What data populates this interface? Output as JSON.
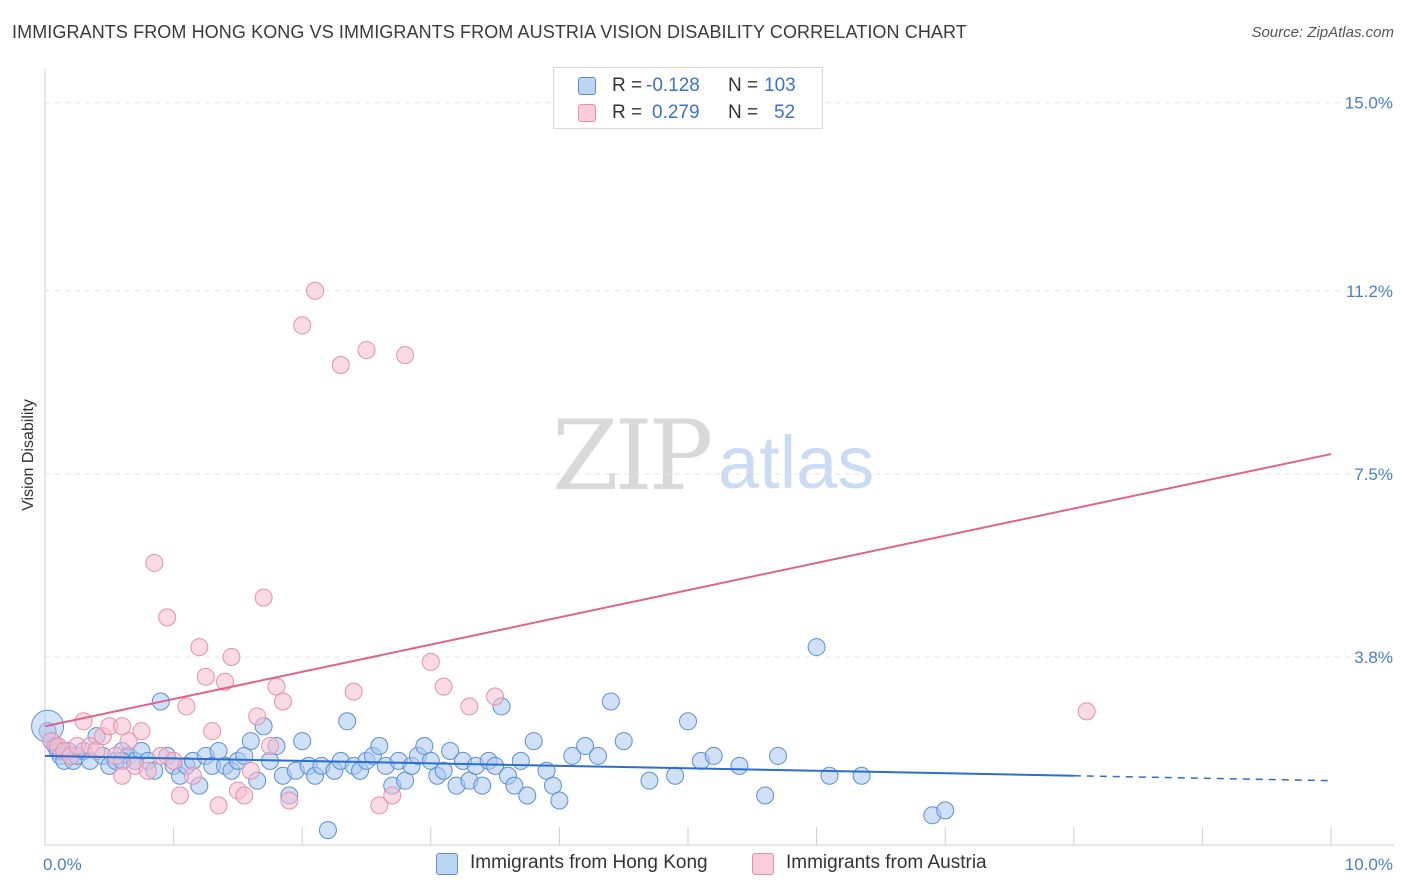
{
  "title": "IMMIGRANTS FROM HONG KONG VS IMMIGRANTS FROM AUSTRIA VISION DISABILITY CORRELATION CHART",
  "source": "Source: ZipAtlas.com",
  "watermark": {
    "zip": "ZIP",
    "atlas": "atlas"
  },
  "legend": {
    "r_label": "R =",
    "n_label": "N =",
    "hong_kong": {
      "r": "-0.128",
      "n": "103"
    },
    "austria": {
      "r": "0.279",
      "n": "52"
    }
  },
  "bottom_legend": {
    "hong_kong": "Immigrants from Hong Kong",
    "austria": "Immigrants from Austria"
  },
  "colors": {
    "hong_kong_fill": "#a9c8f0",
    "hong_kong_stroke": "#5b8fd6",
    "hong_kong_line": "#2a6fcf",
    "austria_fill": "#f6bdd0",
    "austria_stroke": "#e58fac",
    "austria_line": "#e0628e",
    "tick_text": "#4a7fd0",
    "grid": "#e3e3e3"
  },
  "chart_data": {
    "type": "scatter",
    "title": "IMMIGRANTS FROM HONG KONG VS IMMIGRANTS FROM AUSTRIA VISION DISABILITY CORRELATION CHART",
    "xlabel": "",
    "ylabel": "Vision Disability",
    "xlim": [
      0,
      10
    ],
    "ylim": [
      0,
      15.5
    ],
    "x_tick_labels": [
      "0.0%",
      "10.0%"
    ],
    "y_ticks": [
      3.8,
      7.5,
      11.2,
      15.0
    ],
    "y_tick_labels": [
      "3.8%",
      "7.5%",
      "11.2%",
      "15.0%"
    ],
    "grid": true,
    "legend_position": "top-center",
    "series": [
      {
        "name": "Immigrants from Hong Kong",
        "color": "#5b8fd6",
        "trend": {
          "x": [
            0,
            8.0
          ],
          "y": [
            1.8,
            1.4
          ],
          "dashed_to": [
            10.0,
            1.3
          ]
        },
        "points": [
          [
            0.02,
            2.3
          ],
          [
            0.05,
            2.1
          ],
          [
            0.08,
            2.0
          ],
          [
            0.1,
            1.9
          ],
          [
            0.12,
            1.8
          ],
          [
            0.15,
            1.7
          ],
          [
            0.18,
            1.9
          ],
          [
            0.2,
            1.8
          ],
          [
            0.22,
            1.7
          ],
          [
            0.25,
            1.8
          ],
          [
            0.3,
            1.9
          ],
          [
            0.35,
            1.7
          ],
          [
            0.4,
            2.2
          ],
          [
            0.45,
            1.8
          ],
          [
            0.5,
            1.6
          ],
          [
            0.55,
            1.7
          ],
          [
            0.6,
            1.9
          ],
          [
            0.65,
            1.8
          ],
          [
            0.7,
            1.7
          ],
          [
            0.75,
            1.9
          ],
          [
            0.8,
            1.7
          ],
          [
            0.85,
            1.5
          ],
          [
            0.9,
            2.9
          ],
          [
            0.95,
            1.8
          ],
          [
            1.0,
            1.6
          ],
          [
            1.05,
            1.4
          ],
          [
            1.1,
            1.6
          ],
          [
            1.15,
            1.7
          ],
          [
            1.2,
            1.2
          ],
          [
            1.25,
            1.8
          ],
          [
            1.3,
            1.6
          ],
          [
            1.35,
            1.9
          ],
          [
            1.4,
            1.6
          ],
          [
            1.45,
            1.5
          ],
          [
            1.5,
            1.7
          ],
          [
            1.55,
            1.8
          ],
          [
            1.6,
            2.1
          ],
          [
            1.65,
            1.3
          ],
          [
            1.7,
            2.4
          ],
          [
            1.75,
            1.7
          ],
          [
            1.8,
            2.0
          ],
          [
            1.85,
            1.4
          ],
          [
            1.9,
            1.0
          ],
          [
            1.95,
            1.5
          ],
          [
            2.0,
            2.1
          ],
          [
            2.05,
            1.6
          ],
          [
            2.1,
            1.4
          ],
          [
            2.15,
            1.6
          ],
          [
            2.2,
            0.3
          ],
          [
            2.25,
            1.5
          ],
          [
            2.3,
            1.7
          ],
          [
            2.35,
            2.5
          ],
          [
            2.4,
            1.6
          ],
          [
            2.45,
            1.5
          ],
          [
            2.5,
            1.7
          ],
          [
            2.55,
            1.8
          ],
          [
            2.6,
            2.0
          ],
          [
            2.65,
            1.6
          ],
          [
            2.7,
            1.2
          ],
          [
            2.75,
            1.7
          ],
          [
            2.8,
            1.3
          ],
          [
            2.85,
            1.6
          ],
          [
            2.9,
            1.8
          ],
          [
            2.95,
            2.0
          ],
          [
            3.0,
            1.7
          ],
          [
            3.05,
            1.4
          ],
          [
            3.1,
            1.5
          ],
          [
            3.15,
            1.9
          ],
          [
            3.2,
            1.2
          ],
          [
            3.25,
            1.7
          ],
          [
            3.3,
            1.3
          ],
          [
            3.35,
            1.6
          ],
          [
            3.4,
            1.2
          ],
          [
            3.45,
            1.7
          ],
          [
            3.5,
            1.6
          ],
          [
            3.55,
            2.8
          ],
          [
            3.6,
            1.4
          ],
          [
            3.65,
            1.2
          ],
          [
            3.7,
            1.7
          ],
          [
            3.75,
            1.0
          ],
          [
            3.8,
            2.1
          ],
          [
            3.9,
            1.5
          ],
          [
            3.95,
            1.2
          ],
          [
            4.0,
            0.9
          ],
          [
            4.1,
            1.8
          ],
          [
            4.2,
            2.0
          ],
          [
            4.3,
            1.8
          ],
          [
            4.4,
            2.9
          ],
          [
            4.5,
            2.1
          ],
          [
            4.7,
            1.3
          ],
          [
            4.9,
            1.4
          ],
          [
            5.0,
            2.5
          ],
          [
            5.1,
            1.7
          ],
          [
            5.2,
            1.8
          ],
          [
            5.4,
            1.6
          ],
          [
            5.6,
            1.0
          ],
          [
            5.7,
            1.8
          ],
          [
            6.0,
            4.0
          ],
          [
            6.1,
            1.4
          ],
          [
            6.35,
            1.4
          ],
          [
            6.9,
            0.6
          ],
          [
            7.0,
            0.7
          ],
          [
            0.6,
            1.7
          ]
        ]
      },
      {
        "name": "Immigrants from Austria",
        "color": "#e58fac",
        "trend": {
          "x": [
            0,
            10.0
          ],
          "y": [
            2.4,
            7.9
          ]
        },
        "points": [
          [
            0.05,
            2.1
          ],
          [
            0.1,
            2.0
          ],
          [
            0.15,
            1.9
          ],
          [
            0.2,
            1.8
          ],
          [
            0.25,
            2.0
          ],
          [
            0.3,
            2.5
          ],
          [
            0.35,
            2.0
          ],
          [
            0.4,
            1.9
          ],
          [
            0.45,
            2.2
          ],
          [
            0.5,
            2.4
          ],
          [
            0.55,
            1.8
          ],
          [
            0.6,
            1.4
          ],
          [
            0.65,
            2.1
          ],
          [
            0.7,
            1.6
          ],
          [
            0.75,
            2.3
          ],
          [
            0.8,
            1.5
          ],
          [
            0.85,
            5.7
          ],
          [
            0.9,
            1.8
          ],
          [
            0.95,
            4.6
          ],
          [
            1.0,
            1.7
          ],
          [
            1.05,
            1.0
          ],
          [
            1.1,
            2.8
          ],
          [
            1.15,
            1.4
          ],
          [
            1.2,
            4.0
          ],
          [
            1.25,
            3.4
          ],
          [
            1.3,
            2.3
          ],
          [
            1.35,
            0.8
          ],
          [
            1.4,
            3.3
          ],
          [
            1.45,
            3.8
          ],
          [
            1.5,
            1.1
          ],
          [
            1.55,
            1.0
          ],
          [
            1.6,
            1.5
          ],
          [
            1.65,
            2.6
          ],
          [
            1.7,
            5.0
          ],
          [
            1.75,
            2.0
          ],
          [
            1.8,
            3.2
          ],
          [
            1.85,
            2.9
          ],
          [
            1.9,
            0.9
          ],
          [
            2.0,
            10.5
          ],
          [
            2.1,
            11.2
          ],
          [
            2.3,
            9.7
          ],
          [
            2.4,
            3.1
          ],
          [
            2.5,
            10.0
          ],
          [
            2.6,
            0.8
          ],
          [
            2.7,
            1.0
          ],
          [
            2.8,
            9.9
          ],
          [
            3.0,
            3.7
          ],
          [
            3.1,
            3.2
          ],
          [
            3.3,
            2.8
          ],
          [
            3.5,
            3.0
          ],
          [
            8.1,
            2.7
          ],
          [
            0.6,
            2.4
          ]
        ]
      }
    ]
  }
}
